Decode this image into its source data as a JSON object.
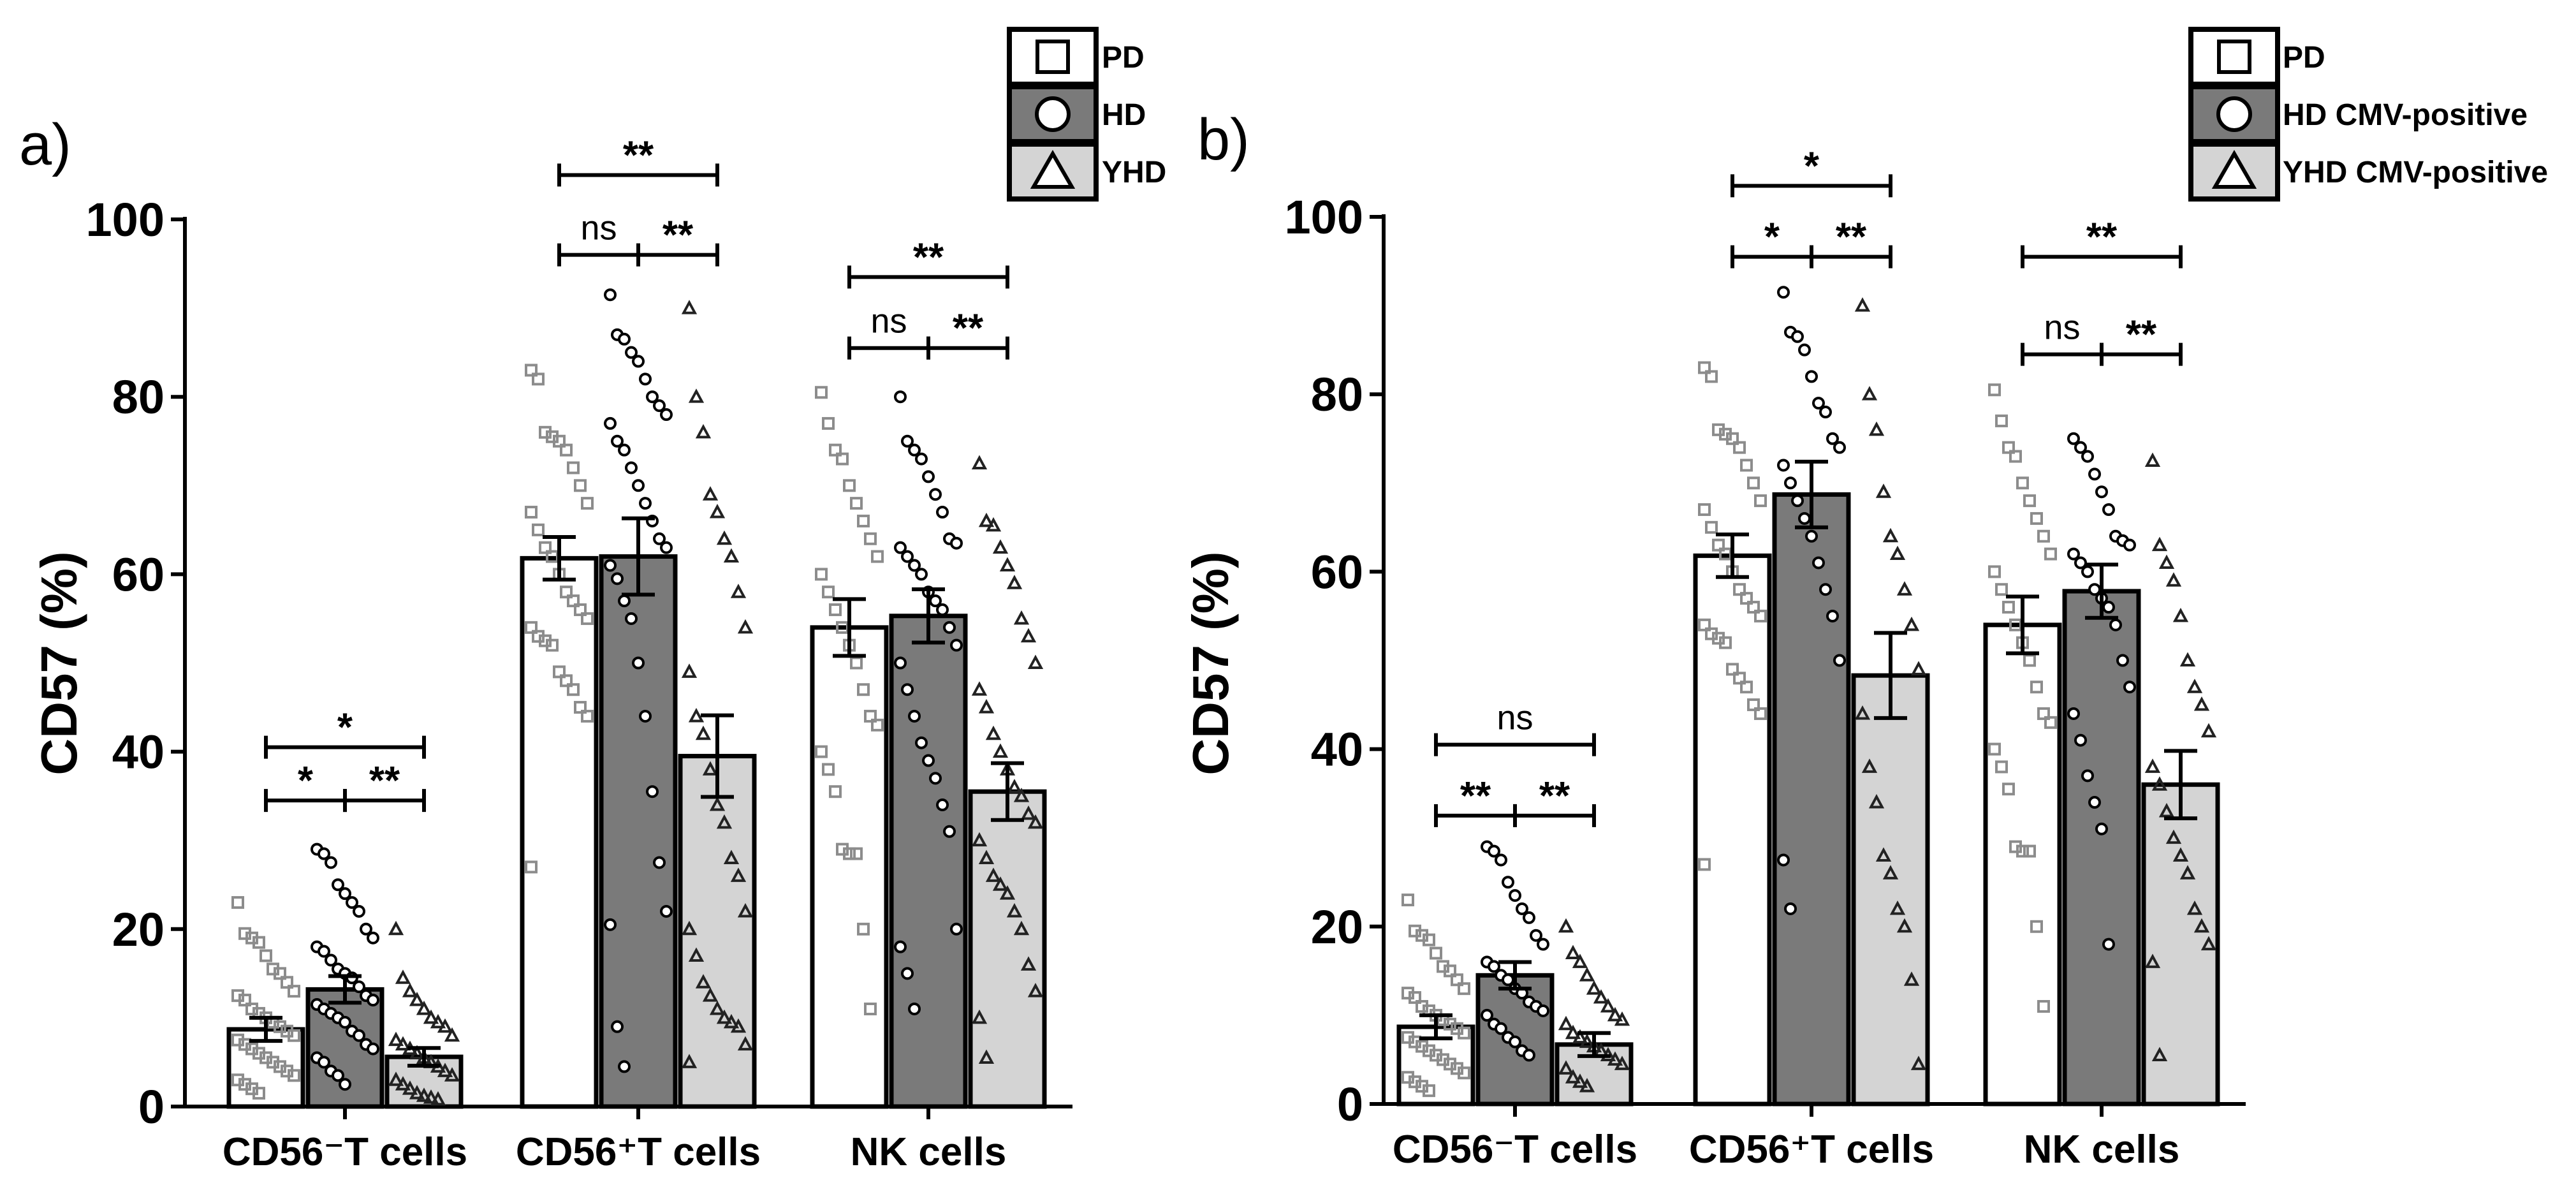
{
  "colors": {
    "PD": "#ffffff",
    "HD": "#7a7a7a",
    "YHD": "#d4d4d4",
    "square_marker": "#8c8c8c",
    "circle_marker": "#ffffff",
    "triangle_marker": "#bdbdbd",
    "stroke": "#000000"
  },
  "chart_data": [
    {
      "panel_label": "a)",
      "type": "bar",
      "ylabel": "CD57 (%)",
      "ylim": [
        0,
        100
      ],
      "yticks": [
        0,
        20,
        40,
        60,
        80,
        100
      ],
      "categories": [
        "CD56⁻T cells",
        "CD56⁺T cells",
        "NK cells"
      ],
      "legend": [
        {
          "label": "PD",
          "marker": "square"
        },
        {
          "label": "HD",
          "marker": "circle"
        },
        {
          "label": "YHD",
          "marker": "triangle"
        }
      ],
      "series": [
        {
          "name": "PD",
          "values": [
            8.7,
            61.8,
            54.0
          ],
          "sem": [
            1.3,
            2.4,
            3.2
          ]
        },
        {
          "name": "HD",
          "values": [
            13.2,
            62.0,
            55.3
          ],
          "sem": [
            1.5,
            4.3,
            3.0
          ]
        },
        {
          "name": "YHD",
          "values": [
            5.6,
            39.5,
            35.5
          ],
          "sem": [
            1.0,
            4.6,
            3.2
          ]
        }
      ],
      "points": [
        [
          [
            23,
            19.5,
            19,
            18.5,
            17,
            15.5,
            15,
            14,
            13,
            12.5,
            12,
            11,
            10.5,
            10,
            9.5,
            9,
            8.5,
            8,
            7.5,
            7,
            6.5,
            6,
            5.5,
            5,
            4.5,
            4,
            3.5,
            3,
            2.5,
            2,
            1.5
          ],
          [
            29,
            28.5,
            27.5,
            25,
            24,
            23,
            22,
            20,
            19,
            18,
            17.5,
            16.5,
            15.5,
            15,
            14.5,
            13.5,
            12.5,
            12,
            11.5,
            11,
            10.5,
            10,
            9.5,
            8.5,
            8,
            7,
            6.5,
            5.5,
            5,
            4,
            3.5,
            2.5
          ],
          [
            20,
            14.5,
            13,
            12,
            11,
            10,
            9.5,
            9,
            8,
            7.5,
            7,
            6.5,
            6,
            5.5,
            5,
            4.5,
            4,
            3.5,
            3,
            2.5,
            2,
            1.5,
            1.2,
            1,
            0.8
          ]
        ],
        [
          [
            83,
            82,
            76,
            75.5,
            75,
            74,
            72,
            70,
            68,
            67,
            65,
            63,
            62,
            60,
            58,
            57,
            56,
            55,
            54,
            53,
            52.5,
            52,
            49,
            48,
            47,
            45,
            44,
            27
          ],
          [
            91.5,
            87,
            86.5,
            85,
            84,
            82,
            80,
            79,
            78,
            77,
            75,
            74,
            72,
            70,
            68,
            66,
            64,
            63,
            61,
            59.5,
            57,
            55,
            50,
            44,
            35.5,
            27.5,
            22,
            20.5,
            9,
            4.5
          ],
          [
            90,
            80,
            76,
            69,
            67,
            64,
            62,
            58,
            54,
            49,
            44,
            42,
            38,
            34,
            32,
            28,
            26,
            22,
            20,
            17,
            14,
            12.5,
            11,
            10,
            9.5,
            9,
            7,
            5
          ]
        ],
        [
          [
            80.5,
            77,
            74,
            73,
            70,
            68,
            66,
            64,
            62,
            60,
            58,
            56,
            54,
            52,
            50,
            47,
            44,
            43,
            40,
            38,
            35.5,
            29,
            28.5,
            28.5,
            20,
            11
          ],
          [
            80,
            75,
            74,
            73,
            71,
            69,
            67,
            64,
            63.5,
            63,
            62,
            61,
            60,
            58,
            57,
            56,
            54,
            52,
            50,
            47,
            44,
            41,
            39,
            37,
            34,
            31,
            20,
            18,
            15,
            11
          ],
          [
            72.5,
            66,
            65.5,
            63,
            61,
            59,
            55,
            53,
            50,
            47,
            45,
            42,
            40,
            38,
            36,
            35,
            33,
            32,
            30,
            28,
            26,
            25,
            24,
            22,
            20,
            16,
            13,
            10,
            5.5
          ]
        ]
      ],
      "significance": [
        {
          "group": 0,
          "from": 0,
          "to": 1,
          "label": "*",
          "y": 34.5
        },
        {
          "group": 0,
          "from": 1,
          "to": 2,
          "label": "**",
          "y": 34.5
        },
        {
          "group": 0,
          "from": 0,
          "to": 2,
          "label": "*",
          "y": 40.5
        },
        {
          "group": 1,
          "from": 0,
          "to": 1,
          "label": "ns",
          "y": 96
        },
        {
          "group": 1,
          "from": 1,
          "to": 2,
          "label": "**",
          "y": 96
        },
        {
          "group": 1,
          "from": 0,
          "to": 2,
          "label": "**",
          "y": 105
        },
        {
          "group": 2,
          "from": 0,
          "to": 1,
          "label": "ns",
          "y": 85.5
        },
        {
          "group": 2,
          "from": 1,
          "to": 2,
          "label": "**",
          "y": 85.5
        },
        {
          "group": 2,
          "from": 0,
          "to": 2,
          "label": "**",
          "y": 93.5
        }
      ]
    },
    {
      "panel_label": "b)",
      "type": "bar",
      "ylabel": "CD57 (%)",
      "ylim": [
        0,
        100
      ],
      "yticks": [
        0,
        20,
        40,
        60,
        80,
        100
      ],
      "categories": [
        "CD56⁻T cells",
        "CD56⁺T cells",
        "NK cells"
      ],
      "legend": [
        {
          "label": "PD",
          "marker": "square"
        },
        {
          "label": "HD CMV-positive",
          "marker": "circle"
        },
        {
          "label": "YHD CMV-positive",
          "marker": "triangle"
        }
      ],
      "series": [
        {
          "name": "PD",
          "values": [
            8.7,
            61.8,
            54.0
          ],
          "sem": [
            1.3,
            2.4,
            3.2
          ]
        },
        {
          "name": "HD CMV-positive",
          "values": [
            14.5,
            68.7,
            57.8
          ],
          "sem": [
            1.5,
            3.7,
            3.0
          ]
        },
        {
          "name": "YHD CMV-positive",
          "values": [
            6.7,
            48.3,
            36.0
          ],
          "sem": [
            1.3,
            4.8,
            3.8
          ]
        }
      ],
      "points": [
        [
          [
            23,
            19.5,
            19,
            18.5,
            17,
            15.5,
            15,
            14,
            13,
            12.5,
            12,
            11,
            10.5,
            10,
            9.5,
            9,
            8.5,
            8,
            7.5,
            7,
            6.5,
            6,
            5.5,
            5,
            4.5,
            4,
            3.5,
            3,
            2.5,
            2,
            1.5
          ],
          [
            29,
            28.5,
            27.5,
            25,
            23.5,
            22,
            21,
            19,
            18,
            16,
            15.5,
            14.5,
            14,
            13,
            12.5,
            11.5,
            11,
            10.5,
            10,
            9,
            8.5,
            7.5,
            7,
            6,
            5.5
          ],
          [
            20,
            17,
            16,
            14.5,
            13,
            12,
            11,
            10,
            9.5,
            9,
            8,
            7.5,
            7,
            6.5,
            6,
            5.5,
            5,
            4.5,
            4,
            3,
            2.5,
            2
          ]
        ],
        [
          [
            83,
            82,
            76,
            75.5,
            75,
            74,
            72,
            70,
            68,
            67,
            65,
            63,
            62,
            60,
            58,
            57,
            56,
            55,
            54,
            53,
            52.5,
            52,
            49,
            48,
            47,
            45,
            44,
            27
          ],
          [
            91.5,
            87,
            86.5,
            85,
            82,
            79,
            78,
            75,
            74,
            72,
            70,
            68,
            66,
            64,
            61,
            58,
            55,
            50,
            27.5,
            22
          ],
          [
            90,
            80,
            76,
            69,
            64,
            62,
            58,
            54,
            49,
            44,
            38,
            34,
            28,
            26,
            22,
            20,
            14,
            4.5
          ]
        ],
        [
          [
            80.5,
            77,
            74,
            73,
            70,
            68,
            66,
            64,
            62,
            60,
            58,
            56,
            54,
            52,
            50,
            47,
            44,
            43,
            40,
            38,
            35.5,
            29,
            28.5,
            28.5,
            20,
            11
          ],
          [
            75,
            74,
            73,
            71,
            69,
            67,
            64,
            63.5,
            63,
            62,
            61,
            60,
            58,
            57,
            56,
            54,
            50,
            47,
            44,
            41,
            37,
            34,
            31,
            18
          ],
          [
            72.5,
            63,
            61,
            59,
            55,
            50,
            47,
            45,
            42,
            38,
            36,
            33,
            30,
            28,
            26,
            22,
            20,
            18,
            16,
            5.5
          ]
        ]
      ],
      "significance": [
        {
          "group": 0,
          "from": 0,
          "to": 1,
          "label": "**",
          "y": 32.5
        },
        {
          "group": 0,
          "from": 1,
          "to": 2,
          "label": "**",
          "y": 32.5
        },
        {
          "group": 0,
          "from": 0,
          "to": 2,
          "label": "ns",
          "y": 40.5
        },
        {
          "group": 1,
          "from": 0,
          "to": 1,
          "label": "*",
          "y": 95.5
        },
        {
          "group": 1,
          "from": 1,
          "to": 2,
          "label": "**",
          "y": 95.5
        },
        {
          "group": 1,
          "from": 0,
          "to": 2,
          "label": "*",
          "y": 103.5
        },
        {
          "group": 2,
          "from": 0,
          "to": 1,
          "label": "ns",
          "y": 84.5
        },
        {
          "group": 2,
          "from": 1,
          "to": 2,
          "label": "**",
          "y": 84.5
        },
        {
          "group": 2,
          "from": 0,
          "to": 2,
          "label": "**",
          "y": 95.5
        }
      ]
    }
  ]
}
